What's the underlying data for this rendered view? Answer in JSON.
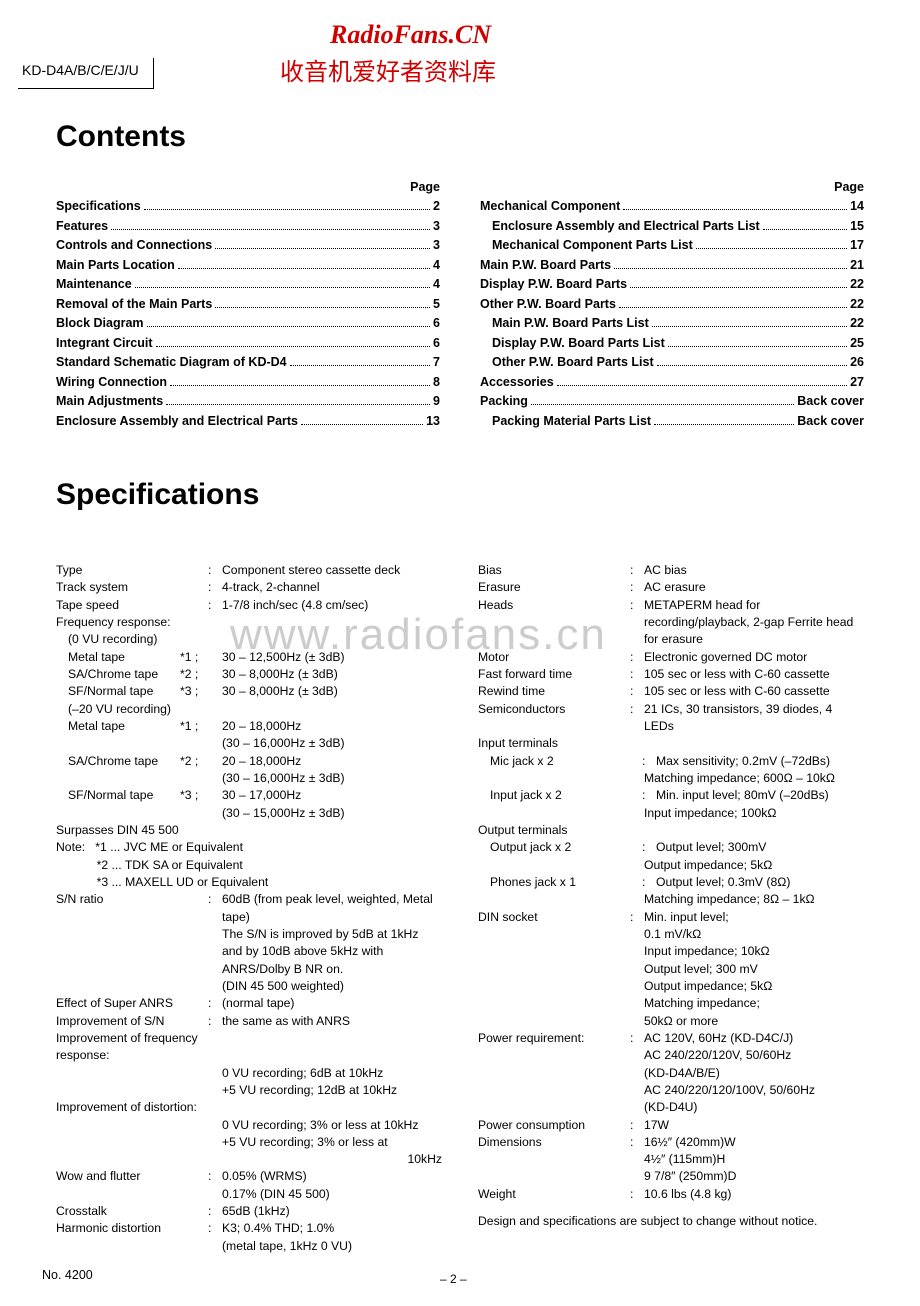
{
  "watermark": {
    "site": "RadioFans.CN",
    "sub": "收音机爱好者资料库",
    "mid": "www.radiofans.cn"
  },
  "model": "KD-D4A/B/C/E/J/U",
  "headings": {
    "contents": "Contents",
    "specs": "Specifications",
    "page": "Page"
  },
  "toc_left": [
    {
      "t": "Specifications",
      "p": "2"
    },
    {
      "t": "Features",
      "p": "3"
    },
    {
      "t": "Controls and Connections",
      "p": "3"
    },
    {
      "t": "Main Parts Location",
      "p": "4"
    },
    {
      "t": "Maintenance",
      "p": "4"
    },
    {
      "t": "Removal of the Main Parts",
      "p": "5"
    },
    {
      "t": "Block Diagram",
      "p": "6"
    },
    {
      "t": "Integrant Circuit",
      "p": "6"
    },
    {
      "t": "Standard Schematic Diagram of KD-D4",
      "p": "7"
    },
    {
      "t": "Wiring Connection",
      "p": "8"
    },
    {
      "t": "Main Adjustments",
      "p": "9"
    },
    {
      "t": "Enclosure Assembly and Electrical Parts",
      "p": "13"
    }
  ],
  "toc_right": [
    {
      "t": "Mechanical Component",
      "p": "14"
    },
    {
      "t": "Enclosure Assembly and Electrical Parts List",
      "p": "15",
      "indent": true
    },
    {
      "t": "Mechanical Component Parts List",
      "p": "17",
      "indent": true
    },
    {
      "t": "Main P.W. Board Parts",
      "p": "21"
    },
    {
      "t": "Display P.W. Board Parts",
      "p": "22"
    },
    {
      "t": "Other P.W. Board Parts",
      "p": "22"
    },
    {
      "t": "Main P.W. Board Parts List",
      "p": "22",
      "indent": true
    },
    {
      "t": "Display P.W. Board Parts List",
      "p": "25",
      "indent": true
    },
    {
      "t": "Other P.W. Board Parts List",
      "p": "26",
      "indent": true
    },
    {
      "t": "Accessories",
      "p": "27"
    },
    {
      "t": "Packing",
      "p": "Back cover"
    },
    {
      "t": "Packing Material Parts List",
      "p": "Back cover",
      "indent": true
    }
  ],
  "specs_left": [
    {
      "l": "Type",
      "v": "Component stereo cassette deck"
    },
    {
      "l": "Track system",
      "v": "4-track, 2-channel"
    },
    {
      "l": "Tape speed",
      "v": "1-7/8 inch/sec (4.8 cm/sec)"
    },
    {
      "l": "Frequency response:",
      "nocolon": true
    },
    {
      "l": "(0 VU recording)",
      "nocolon": true,
      "indent": 1
    },
    {
      "sub": "Metal tape",
      "mark": "*1 ;",
      "v": "30 – 12,500Hz (± 3dB)",
      "indent": 1
    },
    {
      "sub": "SA/Chrome tape",
      "mark": "*2 ;",
      "v": "30 – 8,000Hz (± 3dB)",
      "indent": 1
    },
    {
      "sub": "SF/Normal tape",
      "mark": "*3 ;",
      "v": "30 – 8,000Hz (± 3dB)",
      "indent": 1
    },
    {
      "l": "(–20 VU recording)",
      "nocolon": true,
      "indent": 1
    },
    {
      "sub": "Metal tape",
      "mark": "*1 ;",
      "v": "20 – 18,000Hz",
      "indent": 1
    },
    {
      "cont": "(30 – 16,000Hz ± 3dB)"
    },
    {
      "sub": "SA/Chrome tape",
      "mark": "*2 ;",
      "v": "20 – 18,000Hz",
      "indent": 1
    },
    {
      "cont": "(30 – 16,000Hz ± 3dB)"
    },
    {
      "sub": "SF/Normal tape",
      "mark": "*3 ;",
      "v": "30 – 17,000Hz",
      "indent": 1
    },
    {
      "cont": "(30 – 15,000Hz ± 3dB)"
    },
    {
      "l": "Surpasses DIN 45 500",
      "nocolon": true
    },
    {
      "raw": "Note:   *1 ... JVC ME or Equivalent"
    },
    {
      "raw": "            *2 ... TDK SA or Equivalent"
    },
    {
      "raw": "            *3 ... MAXELL UD or Equivalent"
    },
    {
      "l": "S/N ratio",
      "v": "60dB (from peak level, weighted, Metal tape)"
    },
    {
      "cont": "The S/N is improved by 5dB at 1kHz and by 10dB above 5kHz with ANRS/Dolby B NR on."
    },
    {
      "cont": "(DIN 45 500 weighted)"
    },
    {
      "l": "Effect of Super ANRS",
      "v": "(normal tape)"
    },
    {
      "l": "Improvement of S/N",
      "v": "the same as with ANRS"
    },
    {
      "l": "Improvement of frequency response:",
      "nocolon": true,
      "wide": true
    },
    {
      "cont": "0 VU recording; 6dB at 10kHz"
    },
    {
      "cont": "+5 VU recording; 12dB at 10kHz"
    },
    {
      "l": "Improvement of distortion:",
      "nocolon": true,
      "wide": true
    },
    {
      "cont": "0 VU recording; 3% or less at 10kHz"
    },
    {
      "cont": "+5 VU recording; 3% or less at"
    },
    {
      "contright": "10kHz"
    },
    {
      "l": "Wow and flutter",
      "v": "0.05% (WRMS)"
    },
    {
      "cont": "0.17% (DIN 45 500)"
    },
    {
      "l": "Crosstalk",
      "v": "65dB (1kHz)"
    },
    {
      "l": "Harmonic distortion",
      "v": "K3; 0.4% THD; 1.0%"
    },
    {
      "cont": "(metal tape, 1kHz 0 VU)"
    }
  ],
  "specs_right": [
    {
      "l": "Bias",
      "v": "AC bias"
    },
    {
      "l": "Erasure",
      "v": "AC erasure"
    },
    {
      "l": "Heads",
      "v": "METAPERM head for recording/playback, 2-gap Ferrite head for erasure"
    },
    {
      "l": "Motor",
      "v": "Electronic governed DC motor"
    },
    {
      "l": "Fast forward time",
      "v": "105 sec or less with C-60 cassette"
    },
    {
      "l": "Rewind time",
      "v": "105 sec or less with C-60 cassette"
    },
    {
      "l": "Semiconductors",
      "v": "21 ICs, 30 transistors, 39 diodes, 4 LEDs"
    },
    {
      "l": "Input terminals",
      "nocolon": true
    },
    {
      "l": "Mic jack x 2",
      "v": "Max sensitivity; 0.2mV (–72dBs)",
      "indent": 1
    },
    {
      "cont": "Matching impedance; 600Ω – 10kΩ"
    },
    {
      "l": "Input jack x 2",
      "v": "Min. input level; 80mV (–20dBs)",
      "indent": 1
    },
    {
      "cont": "Input impedance; 100kΩ"
    },
    {
      "l": "Output terminals",
      "nocolon": true
    },
    {
      "l": "Output jack x 2",
      "v": "Output level; 300mV",
      "indent": 1
    },
    {
      "cont": "Output impedance; 5kΩ"
    },
    {
      "l": "Phones jack x 1",
      "v": "Output level; 0.3mV (8Ω)",
      "indent": 1
    },
    {
      "cont": "Matching impedance; 8Ω – 1kΩ"
    },
    {
      "l": "DIN socket",
      "v": "Min. input level;"
    },
    {
      "cont": "0.1 mV/kΩ"
    },
    {
      "cont": "Input impedance; 10kΩ"
    },
    {
      "cont": "Output level; 300 mV"
    },
    {
      "cont": "Output impedance; 5kΩ"
    },
    {
      "cont": "Matching impedance;"
    },
    {
      "cont": "50kΩ or more"
    },
    {
      "l": "Power requirement:",
      "v": "AC 120V, 60Hz (KD-D4C/J)"
    },
    {
      "cont": "AC 240/220/120V, 50/60Hz"
    },
    {
      "cont": "  (KD-D4A/B/E)"
    },
    {
      "cont": "AC 240/220/120/100V, 50/60Hz"
    },
    {
      "cont": "  (KD-D4U)"
    },
    {
      "l": "Power consumption",
      "v": "17W"
    },
    {
      "l": "Dimensions",
      "v": "16½″   (420mm)W"
    },
    {
      "cont": "4½″    (115mm)H"
    },
    {
      "cont": "9 7/8″ (250mm)D"
    },
    {
      "l": "Weight",
      "v": "10.6 lbs (4.8 kg)"
    }
  ],
  "design_note": "Design and specifications are subject to change without notice.",
  "footer": {
    "no": "No. 4200",
    "page": "– 2 –"
  }
}
